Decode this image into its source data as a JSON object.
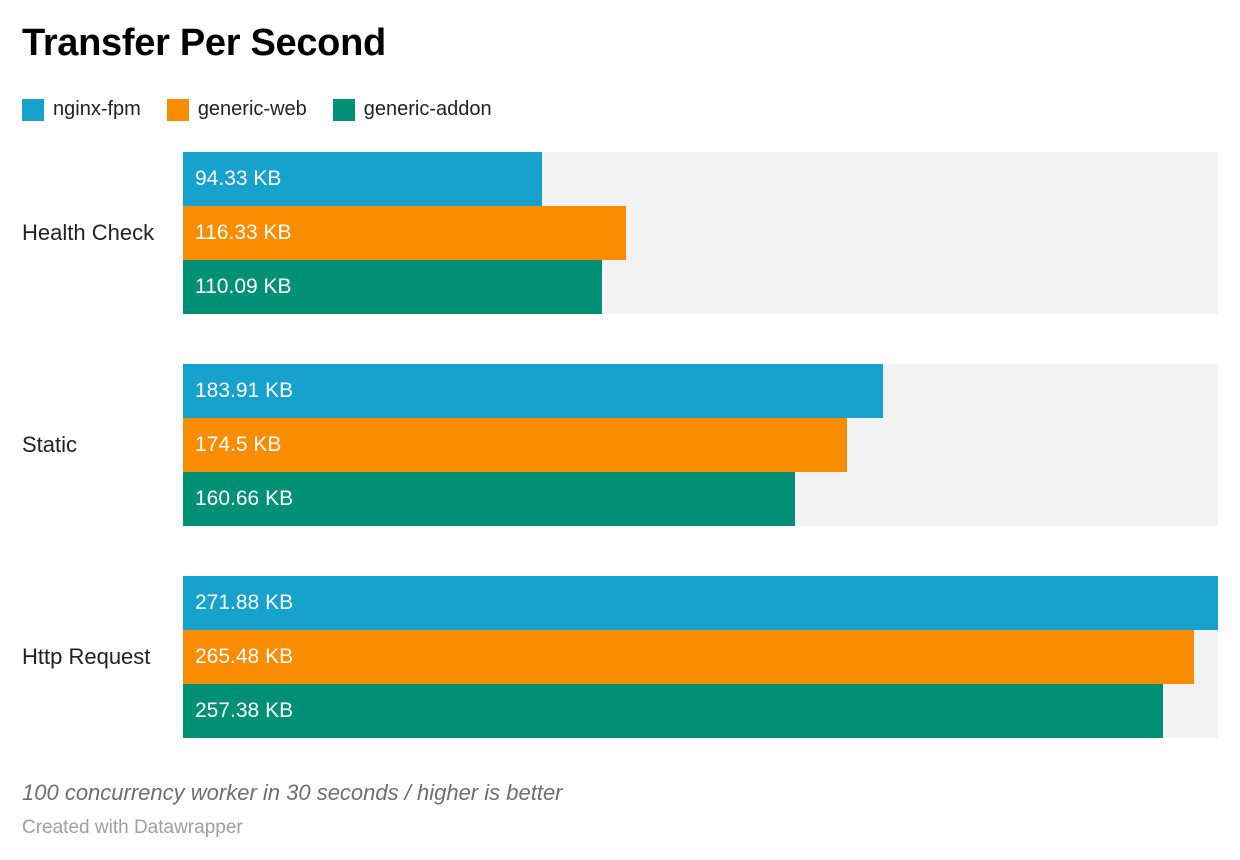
{
  "title": "Transfer Per Second",
  "footer": {
    "note": "100 concurrency worker in 30 seconds / higher is better",
    "credit": "Created with Datawrapper"
  },
  "chart_data": {
    "type": "bar",
    "orientation": "horizontal",
    "title": "Transfer Per Second",
    "categories": [
      "Health Check",
      "Static",
      "Http Request"
    ],
    "series": [
      {
        "name": "nginx-fpm",
        "color": "#17a2cd",
        "values": [
          94.33,
          183.91,
          271.88
        ],
        "labels": [
          "94.33 KB",
          "183.91 KB",
          "271.88 KB"
        ]
      },
      {
        "name": "generic-web",
        "color": "#f98c00",
        "values": [
          116.33,
          174.5,
          265.48
        ],
        "labels": [
          "116.33 KB",
          "174.5 KB",
          "265.48 KB"
        ]
      },
      {
        "name": "generic-addon",
        "color": "#009076",
        "values": [
          110.09,
          160.66,
          257.38
        ],
        "labels": [
          "110.09 KB",
          "160.66 KB",
          "257.38 KB"
        ]
      }
    ],
    "value_unit": "KB",
    "axis_max": 271.88,
    "track_color": "#f2f2f3",
    "legend_position": "top",
    "grid": false,
    "note": "100 concurrency worker in 30 seconds / higher is better",
    "credit": "Created with Datawrapper"
  }
}
